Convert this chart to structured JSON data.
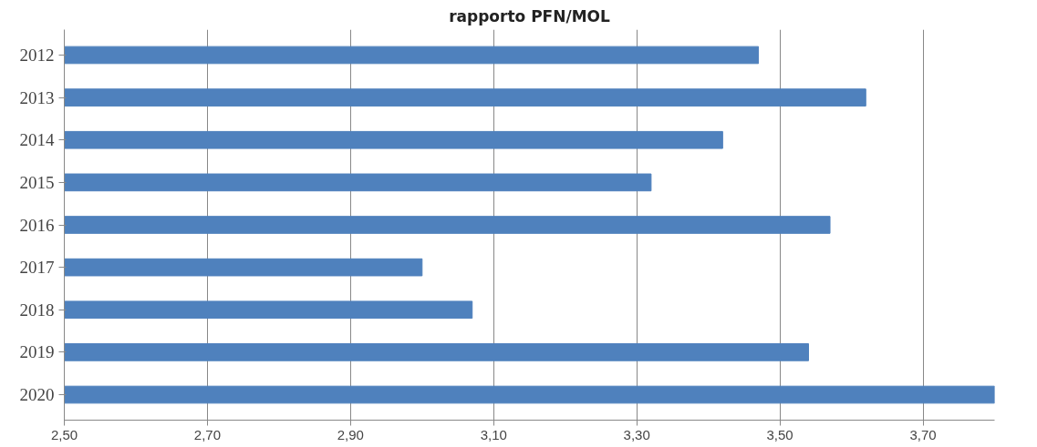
{
  "chart_data": {
    "type": "bar",
    "orientation": "horizontal",
    "title": "rapporto PFN/MOL",
    "categories": [
      "2012",
      "2013",
      "2014",
      "2015",
      "2016",
      "2017",
      "2018",
      "2019",
      "2020"
    ],
    "values": [
      3.47,
      3.62,
      3.42,
      3.32,
      3.57,
      3.0,
      3.07,
      3.54,
      3.8
    ],
    "color": "#4f81bd",
    "xlim": [
      2.5,
      3.8
    ],
    "xticks": [
      {
        "value": 2.5,
        "label": "2,50"
      },
      {
        "value": 2.7,
        "label": "2,70"
      },
      {
        "value": 2.9,
        "label": "2,90"
      },
      {
        "value": 3.1,
        "label": "3,10"
      },
      {
        "value": 3.3,
        "label": "3,30"
      },
      {
        "value": 3.5,
        "label": "3,50"
      },
      {
        "value": 3.7,
        "label": "3,70"
      }
    ],
    "grid": "x"
  }
}
